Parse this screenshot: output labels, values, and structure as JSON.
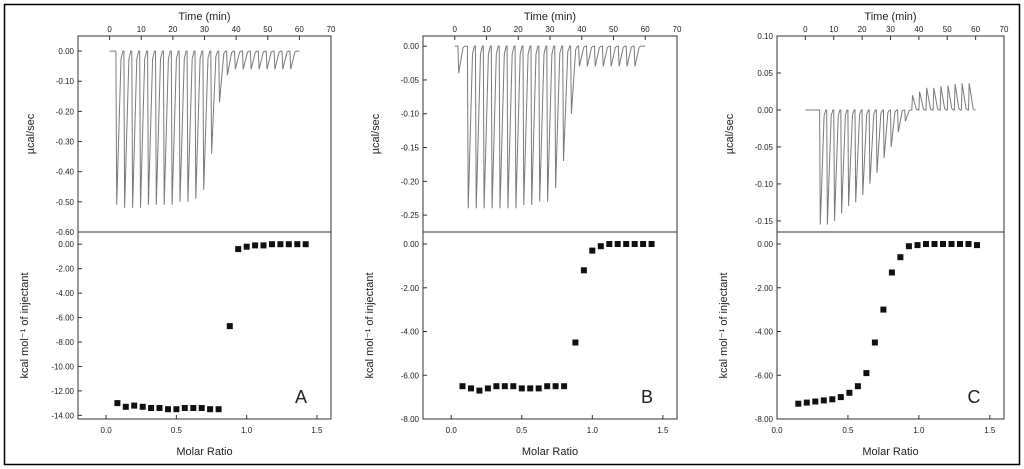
{
  "figure": {
    "border_color": "#000000",
    "trace_color": "#7a7a7a",
    "point_color": "#111111"
  },
  "chart_data": [
    {
      "type": "line",
      "panel": "A",
      "top": {
        "xlabel": "Time (min)",
        "ylabel": "µcal/sec",
        "xlim": [
          -10,
          70
        ],
        "ylim": [
          -0.6,
          0.05
        ],
        "xticks": [
          0,
          10,
          20,
          30,
          40,
          50,
          60,
          70
        ],
        "yticks": [
          0.0,
          -0.1,
          -0.2,
          -0.3,
          -0.4,
          -0.5,
          -0.6
        ],
        "ytick_labels": [
          "0.00",
          "-0.10",
          "-0.20",
          "-0.30",
          "-0.40",
          "-0.50",
          "-0.60"
        ],
        "baseline": 0.0,
        "injection_times": [
          2,
          4.5,
          7,
          9.5,
          12,
          14.5,
          17,
          19.5,
          22,
          24.5,
          27,
          29.5,
          32,
          34.5,
          37,
          39.5,
          42,
          44.5,
          47,
          49.5,
          52,
          54.5,
          57
        ],
        "peak_heights": [
          -0.51,
          -0.52,
          -0.52,
          -0.52,
          -0.51,
          -0.51,
          -0.51,
          -0.51,
          -0.5,
          -0.5,
          -0.49,
          -0.46,
          -0.34,
          -0.17,
          -0.08,
          -0.06,
          -0.06,
          -0.06,
          -0.06,
          -0.06,
          -0.06,
          -0.06,
          -0.06
        ]
      },
      "bottom": {
        "xlabel": "Molar Ratio",
        "ylabel": "kcal mol⁻¹ of injectant",
        "xlim": [
          -0.2,
          1.6
        ],
        "ylim": [
          -14.3,
          1.0
        ],
        "xticks": [
          0.0,
          0.5,
          1.0,
          1.5
        ],
        "xtick_labels": [
          "0.0",
          "0.5",
          "1.0",
          "1.5"
        ],
        "yticks": [
          0,
          -2,
          -4,
          -6,
          -8,
          -10,
          -12,
          -14
        ],
        "ytick_labels": [
          "0.00",
          "-2.00",
          "-4.00",
          "-6.00",
          "-8.00",
          "-10.00",
          "-12.00",
          "-14.00"
        ],
        "x": [
          0.08,
          0.14,
          0.2,
          0.26,
          0.32,
          0.38,
          0.44,
          0.5,
          0.56,
          0.62,
          0.68,
          0.74,
          0.8,
          0.88,
          0.94,
          1.0,
          1.06,
          1.12,
          1.18,
          1.24,
          1.3,
          1.36,
          1.42
        ],
        "y": [
          -13.0,
          -13.3,
          -13.2,
          -13.3,
          -13.4,
          -13.4,
          -13.5,
          -13.5,
          -13.4,
          -13.4,
          -13.4,
          -13.5,
          -13.5,
          -6.7,
          -0.4,
          -0.2,
          -0.1,
          -0.1,
          0.0,
          0.0,
          0.0,
          0.0,
          0.0
        ]
      }
    },
    {
      "type": "line",
      "panel": "B",
      "top": {
        "xlabel": "Time (min)",
        "ylabel": "µcal/sec",
        "xlim": [
          -10,
          70
        ],
        "ylim": [
          -0.275,
          0.015
        ],
        "xticks": [
          0,
          10,
          20,
          30,
          40,
          50,
          60,
          70
        ],
        "yticks": [
          0.0,
          -0.05,
          -0.1,
          -0.15,
          -0.2,
          -0.25
        ],
        "ytick_labels": [
          "0.00",
          "-0.05",
          "-0.10",
          "-0.15",
          "-0.20",
          "-0.25"
        ],
        "baseline": 0.0,
        "injection_times": [
          1,
          4,
          6.5,
          9,
          11.5,
          14,
          16.5,
          19,
          21.5,
          24,
          26.5,
          29,
          31.5,
          34,
          36.5,
          39,
          41.5,
          44,
          46.5,
          49,
          51.5,
          54,
          56.5
        ],
        "peak_heights": [
          -0.04,
          -0.24,
          -0.24,
          -0.24,
          -0.24,
          -0.24,
          -0.24,
          -0.24,
          -0.235,
          -0.235,
          -0.23,
          -0.23,
          -0.21,
          -0.17,
          -0.1,
          -0.03,
          -0.03,
          -0.03,
          -0.03,
          -0.03,
          -0.03,
          -0.03,
          -0.03
        ]
      },
      "bottom": {
        "xlabel": "Molar Ratio",
        "ylabel": "kcal mol⁻¹ of injectant",
        "xlim": [
          -0.2,
          1.6
        ],
        "ylim": [
          -8.0,
          0.55
        ],
        "xticks": [
          0.0,
          0.5,
          1.0,
          1.5
        ],
        "xtick_labels": [
          "0.0",
          "0.5",
          "1.0",
          "1.5"
        ],
        "yticks": [
          0,
          -2,
          -4,
          -6,
          -8
        ],
        "ytick_labels": [
          "0.00",
          "-2.00",
          "-4.00",
          "-6.00",
          "-8.00"
        ],
        "x": [
          0.08,
          0.14,
          0.2,
          0.26,
          0.32,
          0.38,
          0.44,
          0.5,
          0.56,
          0.62,
          0.68,
          0.74,
          0.8,
          0.88,
          0.94,
          1.0,
          1.06,
          1.12,
          1.18,
          1.24,
          1.3,
          1.36,
          1.42
        ],
        "y": [
          -6.5,
          -6.6,
          -6.7,
          -6.6,
          -6.5,
          -6.5,
          -6.5,
          -6.6,
          -6.6,
          -6.6,
          -6.5,
          -6.5,
          -6.5,
          -4.5,
          -1.2,
          -0.3,
          -0.1,
          0.0,
          0.0,
          0.0,
          0.0,
          0.0,
          0.0
        ]
      }
    },
    {
      "type": "line",
      "panel": "C",
      "top": {
        "xlabel": "Time (min)",
        "ylabel": "µcal/sec",
        "xlim": [
          -10,
          70
        ],
        "ylim": [
          -0.165,
          0.1
        ],
        "xticks": [
          0,
          10,
          20,
          30,
          40,
          50,
          60,
          70
        ],
        "yticks": [
          0.1,
          0.05,
          0.0,
          -0.05,
          -0.1,
          -0.15
        ],
        "ytick_labels": [
          "0.10",
          "0.05",
          "0.00",
          "-0.05",
          "-0.10",
          "-0.15"
        ],
        "baseline": 0.0,
        "injection_times": [
          5,
          7.5,
          10,
          12.5,
          15,
          17.5,
          20,
          22.5,
          25,
          27.5,
          30,
          32.5,
          35,
          37.5,
          40,
          42.5,
          45,
          47.5,
          50,
          52.5,
          55,
          57.5
        ],
        "peak_heights": [
          -0.155,
          -0.155,
          -0.15,
          -0.14,
          -0.13,
          -0.125,
          -0.115,
          -0.1,
          -0.085,
          -0.065,
          -0.05,
          -0.03,
          -0.015,
          0.02,
          0.025,
          0.03,
          0.03,
          0.032,
          0.033,
          0.035,
          0.036,
          0.036
        ]
      },
      "bottom": {
        "xlabel": "Molar Ratio",
        "ylabel": "kcal mol⁻¹ of injectant",
        "xlim": [
          0.0,
          1.6
        ],
        "ylim": [
          -8.0,
          0.55
        ],
        "xticks": [
          0.0,
          0.5,
          1.0,
          1.5
        ],
        "xtick_labels": [
          "0.0",
          "0.5",
          "1.0",
          "1.5"
        ],
        "yticks": [
          0,
          -2,
          -4,
          -6,
          -8
        ],
        "ytick_labels": [
          "0.00",
          "-2.00",
          "-4.00",
          "-6.00",
          "-8.00"
        ],
        "x": [
          0.15,
          0.21,
          0.27,
          0.33,
          0.39,
          0.45,
          0.51,
          0.57,
          0.63,
          0.69,
          0.75,
          0.81,
          0.87,
          0.93,
          0.99,
          1.05,
          1.11,
          1.17,
          1.23,
          1.29,
          1.35,
          1.41
        ],
        "y": [
          -7.3,
          -7.25,
          -7.2,
          -7.15,
          -7.1,
          -7.0,
          -6.8,
          -6.5,
          -5.9,
          -4.5,
          -3.0,
          -1.3,
          -0.6,
          -0.1,
          -0.05,
          0.0,
          0.0,
          0.0,
          0.0,
          0.0,
          0.0,
          -0.05
        ]
      }
    }
  ]
}
